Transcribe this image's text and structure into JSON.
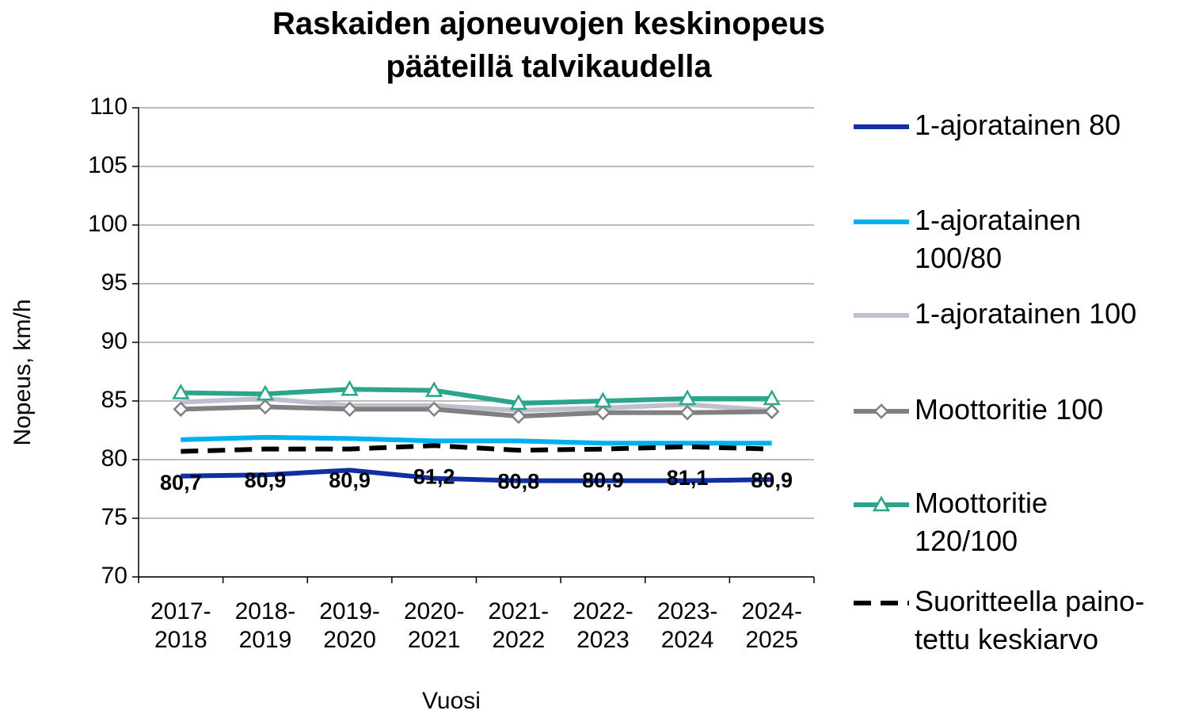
{
  "chart_data": {
    "type": "line",
    "title": "Raskaiden ajoneuvojen keskinopeus\npääteillä talvikaudella",
    "x_label": "Vuosi",
    "y_label": "Nopeus, km/h",
    "categories": [
      "2017-\n2018",
      "2018-\n2019",
      "2019-\n2020",
      "2020-\n2021",
      "2021-\n2022",
      "2022-\n2023",
      "2023-\n2024",
      "2024-\n2025"
    ],
    "ylim": [
      70,
      110
    ],
    "yticks": [
      70,
      75,
      80,
      85,
      90,
      95,
      100,
      105,
      110
    ],
    "grid": true,
    "legend": "right",
    "series": [
      {
        "name": "1-ajoratainen 80",
        "color": "#0f2fa3",
        "values": [
          78.6,
          78.7,
          79.1,
          78.4,
          78.2,
          78.2,
          78.2,
          78.3
        ]
      },
      {
        "name": "1-ajoratainen\n100/80",
        "color": "#00b0f0",
        "values": [
          81.7,
          81.9,
          81.8,
          81.6,
          81.6,
          81.4,
          81.4,
          81.4
        ]
      },
      {
        "name": "1-ajoratainen 100",
        "color": "#bfbfcf",
        "values": [
          84.9,
          85.2,
          84.6,
          84.6,
          84.2,
          84.4,
          84.7,
          84.2
        ]
      },
      {
        "name": "Moottoritie 100",
        "color": "#808080",
        "marker": "diamond",
        "values": [
          84.3,
          84.5,
          84.3,
          84.3,
          83.7,
          84.0,
          84.0,
          84.1
        ]
      },
      {
        "name": "Moottoritie\n120/100",
        "color": "#2ca58d",
        "marker": "triangle",
        "values": [
          85.7,
          85.6,
          86.0,
          85.9,
          84.8,
          85.0,
          85.2,
          85.2
        ]
      },
      {
        "name": "Suoritteella paino-\ntettu keskiarvo",
        "color": "#000000",
        "dash": true,
        "values": [
          80.7,
          80.9,
          80.9,
          81.2,
          80.8,
          80.9,
          81.1,
          80.9
        ],
        "value_labels": [
          "80,7",
          "80,9",
          "80,9",
          "81,2",
          "80,8",
          "80,9",
          "81,1",
          "80,9"
        ]
      }
    ]
  }
}
